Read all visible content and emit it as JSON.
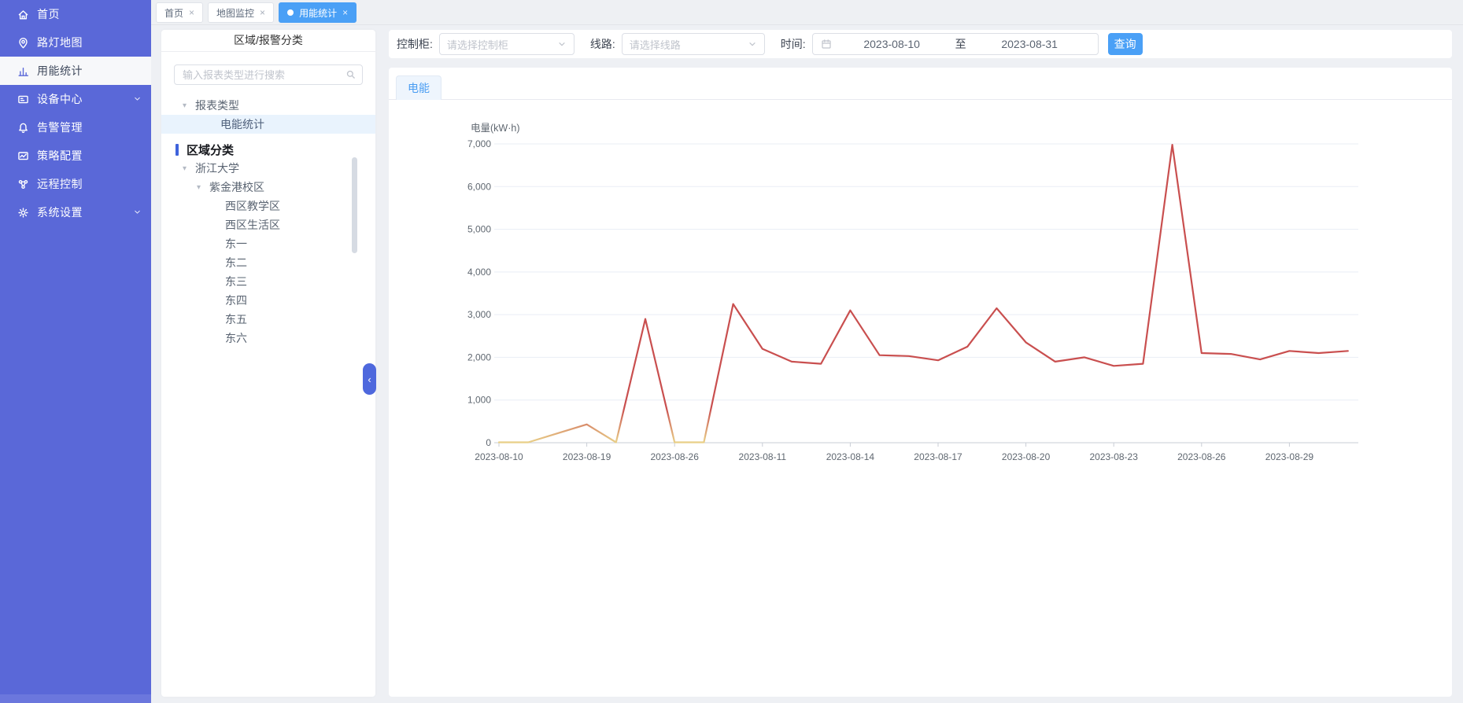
{
  "sidebar": {
    "items": [
      {
        "label": "首页",
        "icon": "home-icon"
      },
      {
        "label": "路灯地图",
        "icon": "map-pin-icon"
      },
      {
        "label": "用能统计",
        "icon": "bar-chart-icon",
        "active": true
      },
      {
        "label": "设备中心",
        "icon": "device-icon",
        "expandable": true
      },
      {
        "label": "告警管理",
        "icon": "alarm-bell-icon"
      },
      {
        "label": "策略配置",
        "icon": "strategy-icon"
      },
      {
        "label": "远程控制",
        "icon": "remote-control-icon"
      },
      {
        "label": "系统设置",
        "icon": "gear-icon",
        "expandable": true
      }
    ]
  },
  "tabs": [
    {
      "label": "首页",
      "active": false
    },
    {
      "label": "地图监控",
      "active": false
    },
    {
      "label": "用能统计",
      "active": true
    }
  ],
  "panel": {
    "title": "区域/报警分类",
    "search_placeholder": "输入报表类型进行搜索",
    "tree": [
      {
        "label": "报表类型",
        "type": "caret",
        "level": 0
      },
      {
        "label": "电能统计",
        "type": "leaf",
        "level": 1,
        "selected": true
      },
      {
        "label": "区域分类",
        "type": "section",
        "level": 0
      },
      {
        "label": "浙江大学",
        "type": "caret",
        "level": 0
      },
      {
        "label": "紫金港校区",
        "type": "caret",
        "level": 1
      },
      {
        "label": "西区教学区",
        "type": "leaf",
        "level": 2
      },
      {
        "label": "西区生活区",
        "type": "leaf",
        "level": 2
      },
      {
        "label": "东一",
        "type": "leaf",
        "level": 2
      },
      {
        "label": "东二",
        "type": "leaf",
        "level": 2
      },
      {
        "label": "东三",
        "type": "leaf",
        "level": 2
      },
      {
        "label": "东四",
        "type": "leaf",
        "level": 2
      },
      {
        "label": "东五",
        "type": "leaf",
        "level": 2
      },
      {
        "label": "东六",
        "type": "leaf",
        "level": 2
      }
    ]
  },
  "filter": {
    "cabinet_label": "控制柜:",
    "cabinet_placeholder": "请选择控制柜",
    "line_label": "线路:",
    "line_placeholder": "请选择线路",
    "time_label": "时间:",
    "date_start": "2023-08-10",
    "date_separator": "至",
    "date_end": "2023-08-31",
    "query_button": "查询"
  },
  "main": {
    "tab_label": "电能"
  },
  "chart_data": {
    "type": "line",
    "title": "电量(kW·h)",
    "ylabel": "电量(kW·h)",
    "x_labels": [
      "2023-08-10",
      "2023-08-19",
      "2023-08-26",
      "2023-08-11",
      "2023-08-14",
      "2023-08-17",
      "2023-08-20",
      "2023-08-23",
      "2023-08-26",
      "2023-08-29"
    ],
    "label_interval": 3,
    "values": [
      10,
      10,
      220,
      430,
      10,
      2900,
      10,
      10,
      3250,
      2200,
      1900,
      1850,
      3100,
      2050,
      2030,
      1930,
      2250,
      3150,
      2350,
      1900,
      2000,
      1800,
      1850,
      6980,
      2100,
      2080,
      1950,
      2150,
      2100,
      2150
    ],
    "ylim": [
      0,
      7000
    ],
    "y_ticks": [
      0,
      1000,
      2000,
      3000,
      4000,
      5000,
      6000,
      7000
    ],
    "grid": true,
    "legend": "none",
    "line_color_high": "#c94f4f",
    "line_color_low": "#e9d189"
  },
  "colors": {
    "sidebar": "#5a68d8",
    "accent_blue": "#4aa0f6",
    "link_blue": "#4a9df2",
    "tree_selected_bg": "#e9f3fd",
    "section_bar": "#3f63dc",
    "grid_line": "#e9eef5"
  }
}
